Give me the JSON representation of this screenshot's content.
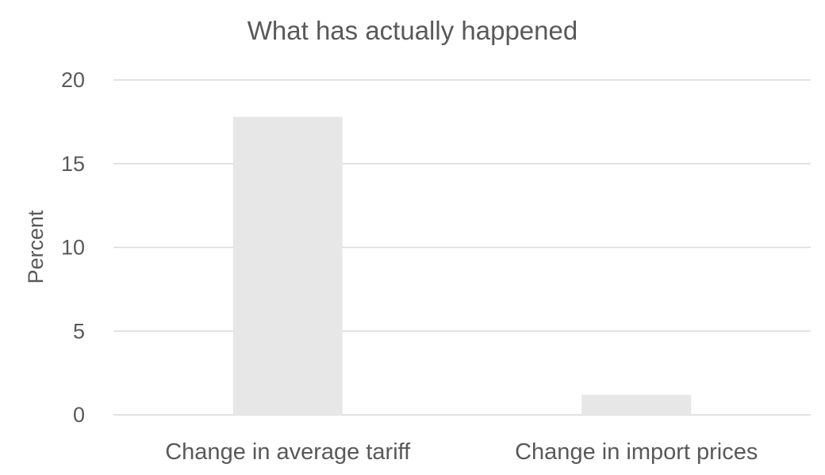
{
  "chart_data": {
    "type": "bar",
    "title": "What has actually happened",
    "xlabel": "",
    "ylabel": "Percent",
    "categories": [
      "Change in average tariff",
      "Change in import prices"
    ],
    "values": [
      17.8,
      1.2
    ],
    "ylim": [
      0,
      20
    ],
    "yticks": [
      "0",
      "5",
      "10",
      "15",
      "20"
    ],
    "grid": true,
    "legend": "none",
    "colors": {
      "bar": "#e7e7e7",
      "grid": "#d9d9d9",
      "text": "#595959"
    }
  }
}
